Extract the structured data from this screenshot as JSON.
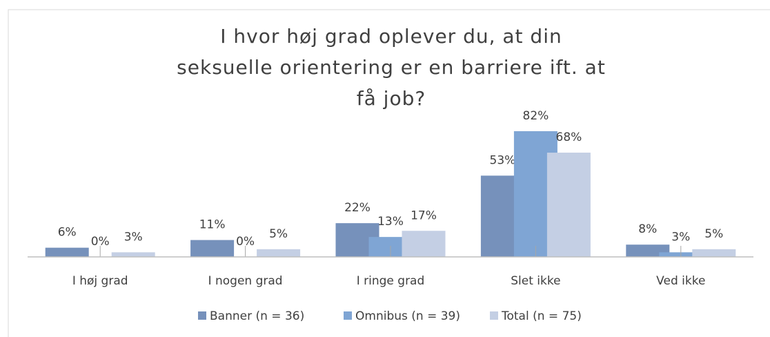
{
  "chart_data": {
    "type": "bar",
    "title": "I hvor høj grad oplever du, at din seksuelle orientering er en barriere ift. at få job?",
    "categories": [
      "I høj grad",
      "I nogen grad",
      "I ringe grad",
      "Slet ikke",
      "Ved ikke"
    ],
    "series": [
      {
        "name": "Banner (n = 36)",
        "color": "#7691bb",
        "values": [
          6,
          11,
          22,
          53,
          8
        ],
        "value_labels": [
          "6%",
          "11%",
          "22%",
          "53%",
          "8%"
        ]
      },
      {
        "name": "Omnibus (n = 39)",
        "color": "#7fa5d4",
        "values": [
          0,
          0,
          13,
          82,
          3
        ],
        "value_labels": [
          "0%",
          "0%",
          "13%",
          "82%",
          "3%"
        ]
      },
      {
        "name": "Total (n = 75)",
        "color": "#c4cfe4",
        "values": [
          3,
          5,
          17,
          68,
          5
        ],
        "value_labels": [
          "3%",
          "5%",
          "17%",
          "68%",
          "5%"
        ]
      }
    ],
    "ylim": [
      0,
      100
    ],
    "legend": "bottom"
  }
}
